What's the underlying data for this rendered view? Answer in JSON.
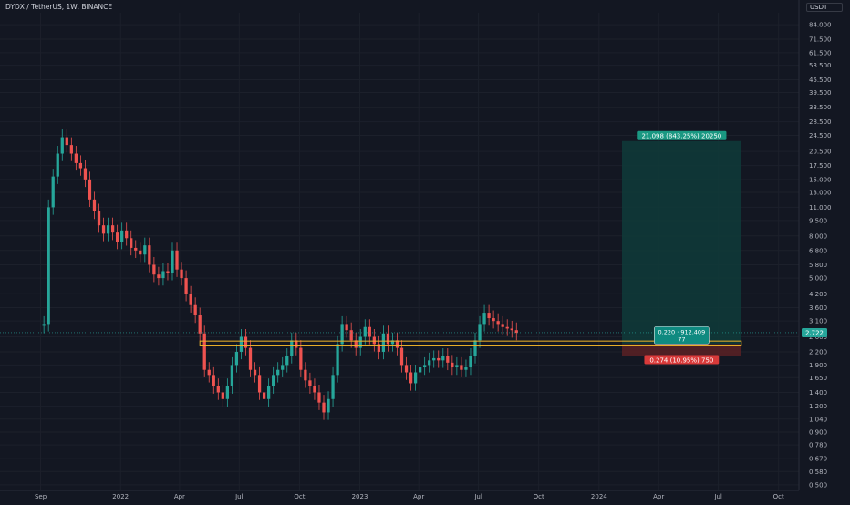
{
  "symbol_title": "DYDX / TetherUS, 1W, BINANCE",
  "axis_unit": "USDT",
  "colors": {
    "up": "#26a69a",
    "down": "#ef5350",
    "background": "#131722",
    "support": "#f0b429",
    "profit_zone": "#0f3b3a",
    "loss_zone": "#5a2124"
  },
  "chart_data": {
    "type": "candlestick",
    "title": "DYDX / TetherUS, 1W, BINANCE",
    "y_scale": "log",
    "ylim": [
      0.47,
      96
    ],
    "y_ticks": [
      "84.000",
      "71.500",
      "61.500",
      "53.500",
      "45.500",
      "39.500",
      "33.500",
      "28.500",
      "24.500",
      "20.500",
      "17.500",
      "15.000",
      "13.000",
      "11.000",
      "9.500",
      "8.000",
      "6.800",
      "5.800",
      "5.000",
      "4.200",
      "3.600",
      "3.100",
      "2.600",
      "2.200",
      "1.900",
      "1.650",
      "1.400",
      "1.200",
      "1.040",
      "0.900",
      "0.780",
      "0.670",
      "0.580",
      "0.500"
    ],
    "x_ticks": [
      {
        "label": "Sep",
        "date": "2021-09-01"
      },
      {
        "label": "2022",
        "date": "2022-01-01"
      },
      {
        "label": "Apr",
        "date": "2022-04-01"
      },
      {
        "label": "Jul",
        "date": "2022-07-01"
      },
      {
        "label": "Oct",
        "date": "2022-10-01"
      },
      {
        "label": "2023",
        "date": "2023-01-01"
      },
      {
        "label": "Apr",
        "date": "2023-04-01"
      },
      {
        "label": "Jul",
        "date": "2023-07-01"
      },
      {
        "label": "Oct",
        "date": "2023-10-01"
      },
      {
        "label": "2024",
        "date": "2024-01-01"
      },
      {
        "label": "Apr",
        "date": "2024-04-01"
      },
      {
        "label": "Jul",
        "date": "2024-07-01"
      },
      {
        "label": "Oct",
        "date": "2024-10-01"
      }
    ],
    "xlim": [
      "2021-07-01",
      "2024-11-01"
    ],
    "first_candle": "2021-09-06",
    "interval_days": 7,
    "close_series": [
      3.0,
      11.0,
      15.5,
      20.0,
      24.0,
      22.0,
      20.0,
      18.0,
      17.0,
      15.0,
      12.0,
      10.5,
      9.0,
      8.2,
      9.0,
      8.3,
      7.5,
      8.5,
      7.8,
      7.0,
      6.8,
      6.5,
      7.2,
      5.8,
      5.2,
      5.0,
      5.4,
      5.3,
      6.8,
      5.5,
      5.0,
      4.2,
      3.7,
      3.3,
      2.7,
      1.8,
      1.7,
      1.5,
      1.4,
      1.3,
      1.5,
      1.9,
      2.2,
      2.6,
      2.3,
      1.8,
      1.7,
      1.4,
      1.3,
      1.5,
      1.7,
      1.8,
      1.9,
      2.1,
      2.5,
      2.3,
      1.8,
      1.6,
      1.5,
      1.4,
      1.25,
      1.12,
      1.3,
      1.7,
      2.4,
      3.0,
      2.8,
      2.5,
      2.3,
      2.6,
      2.9,
      2.6,
      2.4,
      2.2,
      2.7,
      2.4,
      2.5,
      2.3,
      1.9,
      1.75,
      1.55,
      1.75,
      1.85,
      1.9,
      2.0,
      2.05,
      2.0,
      2.1,
      1.95,
      1.85,
      1.9,
      1.8,
      1.85,
      2.1,
      2.5,
      3.0,
      3.4,
      3.2,
      3.1,
      3.0,
      2.9,
      2.85,
      2.8,
      2.72
    ],
    "current_price": "2.722",
    "support_zone": [
      2.35,
      2.48
    ],
    "position": {
      "entry": 2.4,
      "target": 23.0,
      "stop": 2.1,
      "profit_label": "21.098 (843.25%) 20250",
      "entry_label_line1": "0.220 · 912.409",
      "entry_label_line2": "77",
      "loss_label": "0.274 (10.95%) 750"
    }
  }
}
